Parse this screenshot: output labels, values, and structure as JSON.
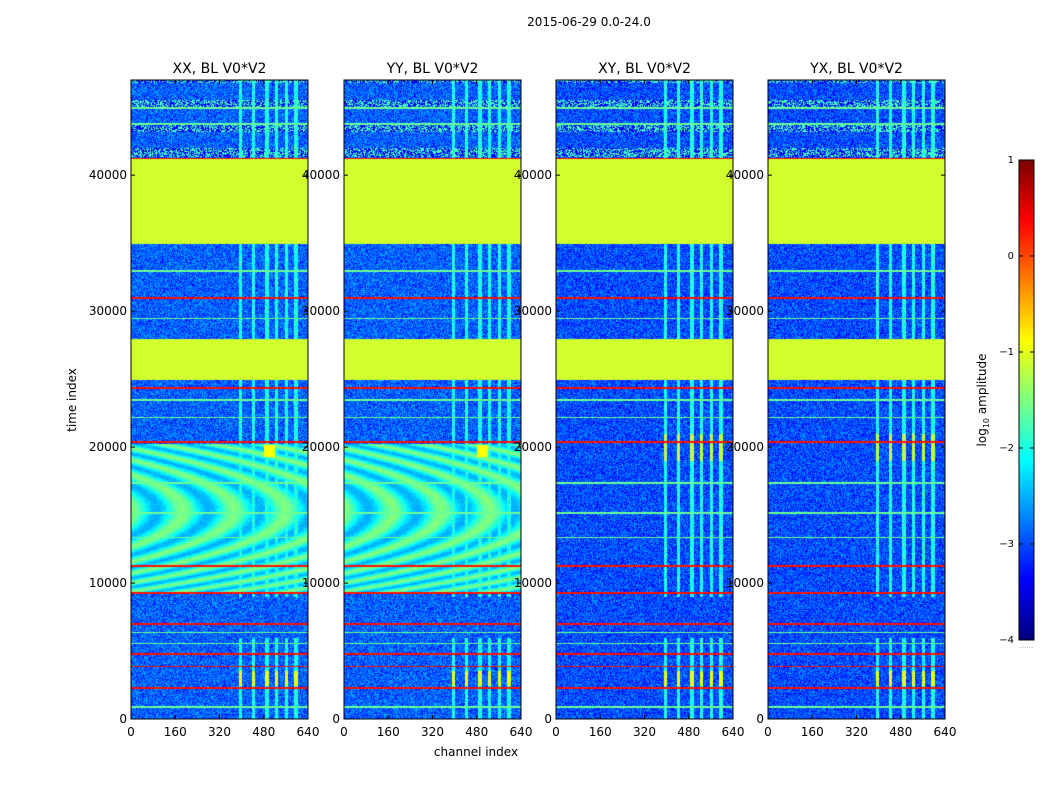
{
  "figure_title": "2015-06-29 0.0-24.0",
  "chart_data": {
    "type": "heatmap",
    "title": "2015-06-29 0.0-24.0",
    "xlabel": "channel index",
    "ylabel": "time index",
    "xlim": [
      0,
      640
    ],
    "ylim": [
      0,
      47000
    ],
    "x_ticks": [
      0,
      160,
      320,
      480,
      640
    ],
    "y_ticks": [
      0,
      10000,
      20000,
      30000,
      40000
    ],
    "panels": [
      {
        "title": "XX, BL V0*V2",
        "pol": "XX"
      },
      {
        "title": "YY, BL V0*V2",
        "pol": "YY"
      },
      {
        "title": "XY, BL V0*V2",
        "pol": "XY"
      },
      {
        "title": "YX, BL V0*V2",
        "pol": "YX"
      }
    ],
    "colorbar": {
      "label": "log10 amplitude",
      "label_base": "log",
      "label_sub": "10",
      "label_rest": " amplitude",
      "min": -4,
      "max": 1,
      "ticks": [
        1,
        0,
        -1,
        -2,
        -3,
        -4
      ],
      "tick_labels": [
        "1",
        "0",
        "−1",
        "−2",
        "−3",
        "−4"
      ],
      "colormap": "jet",
      "extend_label": "......"
    },
    "regions": {
      "flagged_block": [
        35000,
        41200
      ],
      "flagged_block_2": [
        25000,
        28000
      ],
      "fringe_region": [
        9300,
        20300
      ],
      "upper_striped": [
        41200,
        47000
      ],
      "time_max": 47000,
      "red_flag_rows": [
        41200,
        31000,
        24400,
        20400,
        11300,
        9300,
        7000,
        4800,
        3900,
        2300
      ],
      "white_gap_rows": [
        45000,
        43800,
        33000,
        29500,
        23500,
        22200,
        17400,
        15200,
        13400,
        6400,
        5600,
        900
      ]
    },
    "levels": {
      "flagged": -1.1,
      "auto_noise": -2.9,
      "cross_noise": -3.0,
      "fringe_high": -1.5,
      "fringe_low": -2.5,
      "rfi_channels": [
        395,
        440,
        490,
        525,
        560,
        595
      ]
    }
  }
}
